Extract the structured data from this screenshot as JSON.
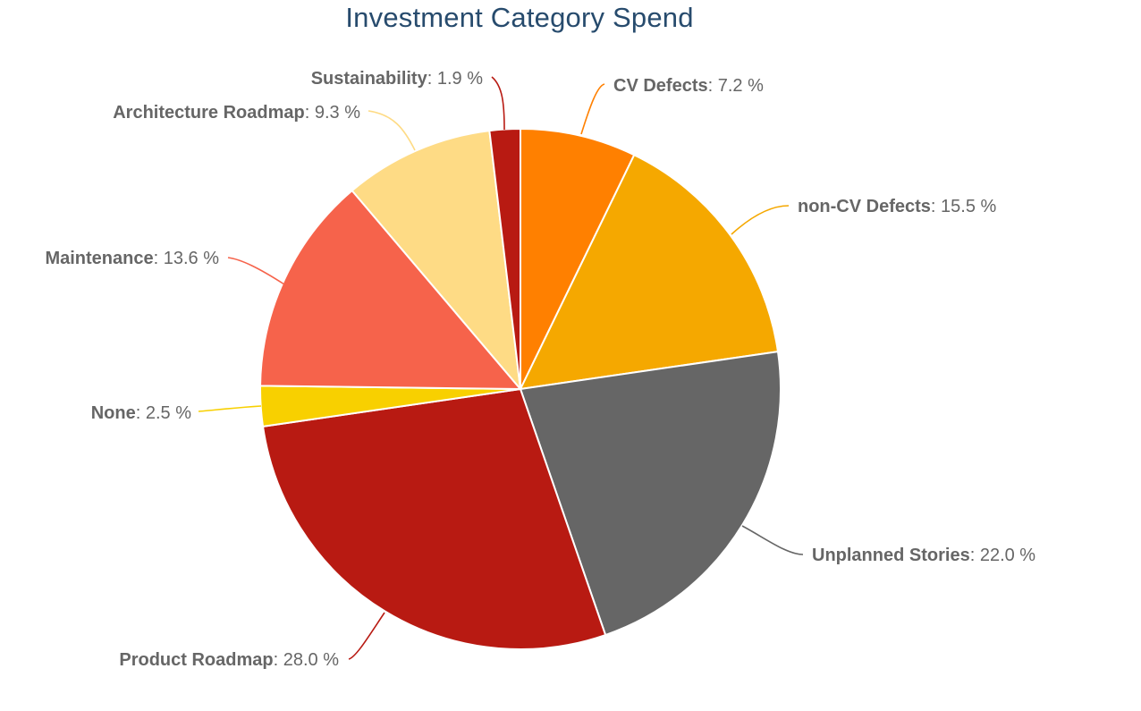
{
  "chart_data": {
    "type": "pie",
    "title": "Investment Category Spend",
    "unit": "%",
    "separator": ": ",
    "slices": [
      {
        "name": "CV Defects",
        "value": 7.2,
        "label": "7.2 %",
        "color": "#ff8000"
      },
      {
        "name": "non-CV Defects",
        "value": 15.5,
        "label": "15.5 %",
        "color": "#f5a800"
      },
      {
        "name": "Unplanned Stories",
        "value": 22.0,
        "label": "22.0 %",
        "color": "#666666"
      },
      {
        "name": "Product Roadmap",
        "value": 28.0,
        "label": "28.0 %",
        "color": "#b81a12"
      },
      {
        "name": "None",
        "value": 2.5,
        "label": "2.5 %",
        "color": "#f8d000"
      },
      {
        "name": "Maintenance",
        "value": 13.6,
        "label": "13.6 %",
        "color": "#f6634b"
      },
      {
        "name": "Architecture Roadmap",
        "value": 9.3,
        "label": "9.3 %",
        "color": "#fedb85"
      },
      {
        "name": "Sustainability",
        "value": 1.9,
        "label": "1.9 %",
        "color": "#b81a12"
      }
    ],
    "label_color": "#666666",
    "slice_border_color": "#ffffff"
  }
}
